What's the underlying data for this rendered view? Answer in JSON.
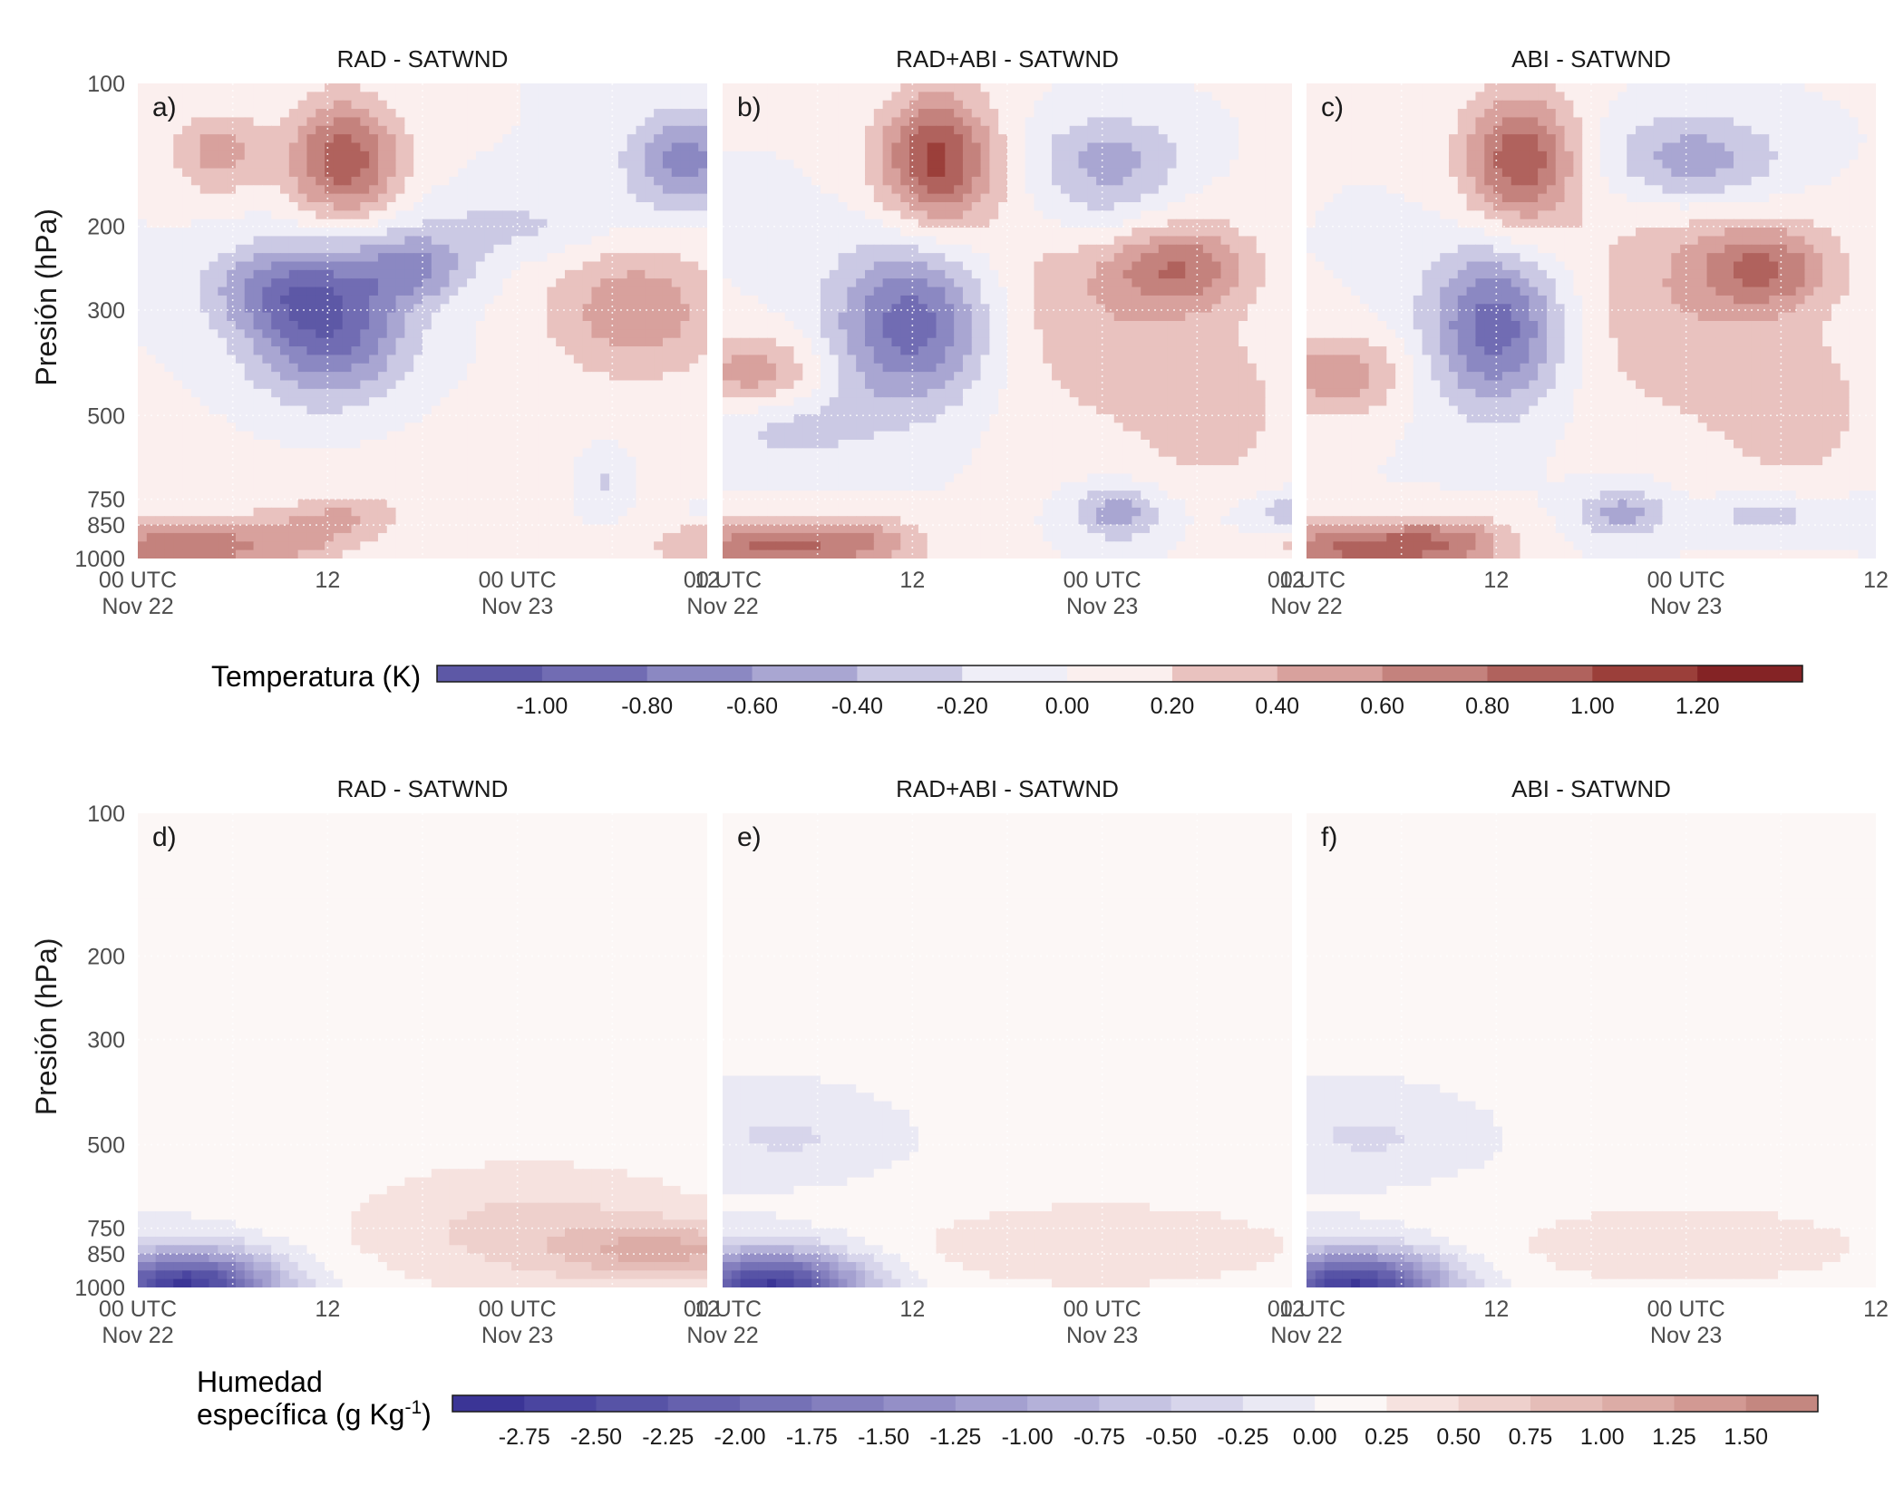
{
  "chart_data": [
    {
      "type": "heatmap",
      "panel": "a)",
      "title": "RAD - SATWND",
      "ylabel": "Presión (hPa)",
      "y_scale": "log",
      "ylim": [
        1000,
        100
      ],
      "yticks": [
        "100",
        "200",
        "300",
        "500",
        "750",
        "850",
        "1000"
      ],
      "xticks": [
        "00 UTC\nNov 22",
        "12",
        "00 UTC\nNov 23",
        "12"
      ],
      "variable": "temperatura",
      "features": [
        {
          "time_h": 13,
          "p": 145,
          "value": 0.95,
          "sx": 2.5,
          "sy": 0.09
        },
        {
          "time_h": 5,
          "p": 140,
          "value": 0.5,
          "sx": 2,
          "sy": 0.06
        },
        {
          "time_h": 34.5,
          "p": 145,
          "value": -0.7,
          "sx": 2.5,
          "sy": 0.07
        },
        {
          "time_h": 24,
          "p": 200,
          "value": -0.25,
          "sx": 5,
          "sy": 0.05
        },
        {
          "time_h": 12,
          "p": 320,
          "value": -1.0,
          "sx": 3.5,
          "sy": 0.11
        },
        {
          "time_h": 17.5,
          "p": 245,
          "value": -0.55,
          "sx": 2.5,
          "sy": 0.05
        },
        {
          "time_h": 8,
          "p": 270,
          "value": -0.4,
          "sx": 3,
          "sy": 0.06
        },
        {
          "time_h": 31.5,
          "p": 300,
          "value": 0.55,
          "sx": 4,
          "sy": 0.1
        },
        {
          "time_h": 15,
          "p": 650,
          "value": 0.06,
          "sx": 12,
          "sy": 0.15
        },
        {
          "time_h": 2.5,
          "p": 950,
          "value": 0.75,
          "sx": 4,
          "sy": 0.04
        },
        {
          "time_h": 10,
          "p": 910,
          "value": 0.35,
          "sx": 3,
          "sy": 0.04
        },
        {
          "time_h": 13.5,
          "p": 810,
          "value": 0.3,
          "sx": 2.5,
          "sy": 0.03
        },
        {
          "time_h": 38,
          "p": 930,
          "value": 0.45,
          "sx": 4,
          "sy": 0.04
        },
        {
          "time_h": 29.5,
          "p": 700,
          "value": -0.25,
          "sx": 1,
          "sy": 0.05
        },
        {
          "time_h": 39,
          "p": 810,
          "value": -0.25,
          "sx": 3,
          "sy": 0.02
        }
      ]
    },
    {
      "type": "heatmap",
      "panel": "b)",
      "title": "RAD+ABI - SATWND",
      "ylabel": "",
      "y_scale": "log",
      "ylim": [
        1000,
        100
      ],
      "yticks": [],
      "xticks": [
        "00 UTC\nNov 22",
        "12",
        "00 UTC\nNov 23",
        "12"
      ],
      "variable": "temperatura",
      "features": [
        {
          "time_h": 13.5,
          "p": 145,
          "value": 1.05,
          "sx": 2.5,
          "sy": 0.1
        },
        {
          "time_h": 24,
          "p": 190,
          "value": -0.25,
          "sx": 3,
          "sy": 0.06
        },
        {
          "time_h": 24.5,
          "p": 145,
          "value": -0.55,
          "sx": 3.5,
          "sy": 0.07
        },
        {
          "time_h": 12,
          "p": 320,
          "value": -0.95,
          "sx": 3.5,
          "sy": 0.12
        },
        {
          "time_h": 24,
          "p": 290,
          "value": 0.35,
          "sx": 6,
          "sy": 0.2
        },
        {
          "time_h": 29,
          "p": 245,
          "value": 0.6,
          "sx": 3,
          "sy": 0.06
        },
        {
          "time_h": 2,
          "p": 410,
          "value": 0.55,
          "sx": 3,
          "sy": 0.06
        },
        {
          "time_h": 25,
          "p": 800,
          "value": -0.55,
          "sx": 2,
          "sy": 0.04
        },
        {
          "time_h": 31,
          "p": 500,
          "value": 0.3,
          "sx": 3,
          "sy": 0.1
        },
        {
          "time_h": 4,
          "p": 520,
          "value": -0.3,
          "sx": 4,
          "sy": 0.06
        },
        {
          "time_h": 37,
          "p": 810,
          "value": -0.45,
          "sx": 2.5,
          "sy": 0.03
        },
        {
          "time_h": 2.5,
          "p": 950,
          "value": 0.8,
          "sx": 4,
          "sy": 0.04
        },
        {
          "time_h": 9,
          "p": 920,
          "value": 0.45,
          "sx": 3,
          "sy": 0.04
        },
        {
          "time_h": 38,
          "p": 930,
          "value": 0.35,
          "sx": 3,
          "sy": 0.03
        }
      ]
    },
    {
      "type": "heatmap",
      "panel": "c)",
      "title": "ABI - SATWND",
      "ylabel": "",
      "y_scale": "log",
      "ylim": [
        1000,
        100
      ],
      "yticks": [],
      "xticks": [
        "00 UTC\nNov 22",
        "12",
        "00 UTC\nNov 23",
        "12"
      ],
      "variable": "temperatura",
      "features": [
        {
          "time_h": 13.5,
          "p": 145,
          "value": 0.95,
          "sx": 2.5,
          "sy": 0.1
        },
        {
          "time_h": 24.5,
          "p": 145,
          "value": -0.6,
          "sx": 4,
          "sy": 0.07
        },
        {
          "time_h": 12,
          "p": 325,
          "value": -0.95,
          "sx": 3,
          "sy": 0.12
        },
        {
          "time_h": 24,
          "p": 290,
          "value": 0.35,
          "sx": 6,
          "sy": 0.2
        },
        {
          "time_h": 29,
          "p": 245,
          "value": 0.65,
          "sx": 3,
          "sy": 0.06
        },
        {
          "time_h": 2,
          "p": 410,
          "value": 0.55,
          "sx": 3,
          "sy": 0.06
        },
        {
          "time_h": 20,
          "p": 800,
          "value": -0.5,
          "sx": 2,
          "sy": 0.04
        },
        {
          "time_h": 31,
          "p": 500,
          "value": 0.3,
          "sx": 3,
          "sy": 0.1
        },
        {
          "time_h": 29,
          "p": 810,
          "value": -0.35,
          "sx": 2.5,
          "sy": 0.03
        },
        {
          "time_h": 38,
          "p": 810,
          "value": -0.3,
          "sx": 2.5,
          "sy": 0.03
        },
        {
          "time_h": 2.5,
          "p": 950,
          "value": 0.8,
          "sx": 4,
          "sy": 0.04
        },
        {
          "time_h": 9,
          "p": 930,
          "value": 0.6,
          "sx": 3,
          "sy": 0.04
        }
      ]
    },
    {
      "type": "heatmap",
      "panel": "d)",
      "title": "RAD - SATWND",
      "ylabel": "Presión (hPa)",
      "y_scale": "log",
      "ylim": [
        1000,
        100
      ],
      "yticks": [
        "100",
        "200",
        "300",
        "500",
        "750",
        "850",
        "1000"
      ],
      "xticks": [
        "00 UTC\nNov 22",
        "12",
        "00 UTC\nNov 23",
        "12"
      ],
      "variable": "humedad",
      "features": [
        {
          "time_h": 3,
          "p": 990,
          "value": -2.8,
          "sx": 4,
          "sy": 0.05
        },
        {
          "time_h": 25,
          "p": 760,
          "value": 0.55,
          "sx": 9,
          "sy": 0.1
        },
        {
          "time_h": 34,
          "p": 840,
          "value": 0.8,
          "sx": 5,
          "sy": 0.04
        },
        {
          "time_h": 24,
          "p": 300,
          "value": 0.08,
          "sx": 10,
          "sy": 0.3
        }
      ]
    },
    {
      "type": "heatmap",
      "panel": "e)",
      "title": "RAD+ABI - SATWND",
      "ylabel": "",
      "y_scale": "log",
      "ylim": [
        1000,
        100
      ],
      "yticks": [],
      "xticks": [
        "00 UTC\nNov 22",
        "12",
        "00 UTC\nNov 23",
        "12"
      ],
      "variable": "humedad",
      "features": [
        {
          "time_h": 3,
          "p": 990,
          "value": -2.8,
          "sx": 4,
          "sy": 0.05
        },
        {
          "time_h": 4,
          "p": 480,
          "value": -0.3,
          "sx": 4,
          "sy": 0.05
        },
        {
          "time_h": 24,
          "p": 820,
          "value": 0.45,
          "sx": 10,
          "sy": 0.07
        },
        {
          "time_h": 24,
          "p": 300,
          "value": 0.08,
          "sx": 10,
          "sy": 0.3
        }
      ]
    },
    {
      "type": "heatmap",
      "panel": "f)",
      "title": "ABI - SATWND",
      "ylabel": "",
      "y_scale": "log",
      "ylim": [
        1000,
        100
      ],
      "yticks": [],
      "xticks": [
        "00 UTC\nNov 22",
        "12",
        "00 UTC\nNov 23",
        "12"
      ],
      "variable": "humedad",
      "features": [
        {
          "time_h": 3,
          "p": 990,
          "value": -2.8,
          "sx": 4,
          "sy": 0.05
        },
        {
          "time_h": 4,
          "p": 480,
          "value": -0.3,
          "sx": 4,
          "sy": 0.05
        },
        {
          "time_h": 24,
          "p": 820,
          "value": 0.4,
          "sx": 10,
          "sy": 0.07
        },
        {
          "time_h": 24,
          "p": 300,
          "value": 0.08,
          "sx": 10,
          "sy": 0.3
        }
      ]
    }
  ],
  "xlim_hours": [
    0,
    36
  ],
  "pressure_ticks": [
    100,
    200,
    300,
    500,
    750,
    850,
    1000
  ],
  "xtick_hours": [
    0,
    12,
    24,
    36
  ],
  "colorbars": {
    "temperatura": {
      "title": "Temperatura (K)",
      "levels": [
        -1.2,
        -1.0,
        -0.8,
        -0.6,
        -0.4,
        -0.2,
        0.0,
        0.2,
        0.4,
        0.6,
        0.8,
        1.0,
        1.2,
        1.4
      ],
      "labels": [
        "-1.00",
        "-0.80",
        "-0.60",
        "-0.40",
        "-0.20",
        "0.00",
        "0.20",
        "0.40",
        "0.60",
        "0.80",
        "1.00",
        "1.20"
      ],
      "colors": [
        "#5d58a6",
        "#716cb3",
        "#8b88c2",
        "#a9a6d2",
        "#cbc9e4",
        "#efeef7",
        "#fbefee",
        "#e9c2bf",
        "#d8a19d",
        "#c4827d",
        "#b0625d",
        "#9b3f3a",
        "#842325"
      ]
    },
    "humedad": {
      "title_line1": "Humedad",
      "title_line2": "específica (g Kg",
      "title_sup": "-1",
      "title_close": ")",
      "levels": [
        -3.0,
        -2.75,
        -2.5,
        -2.25,
        -2.0,
        -1.75,
        -1.5,
        -1.25,
        -1.0,
        -0.75,
        -0.5,
        -0.25,
        0.0,
        0.25,
        0.5,
        0.75,
        1.0,
        1.25,
        1.5,
        1.75
      ],
      "labels": [
        "-2.75",
        "-2.50",
        "-2.25",
        "-2.00",
        "-1.75",
        "-1.50",
        "-1.25",
        "-1.00",
        "-0.75",
        "-0.50",
        "-0.25",
        "0.00",
        "0.25",
        "0.50",
        "0.75",
        "1.00",
        "1.25",
        "1.50"
      ],
      "colors": [
        "#3b3596",
        "#4a45a0",
        "#5753a6",
        "#6661ae",
        "#7571b6",
        "#847fbe",
        "#948fc7",
        "#a4a0d0",
        "#b4b1d9",
        "#c5c3e2",
        "#d7d5eb",
        "#eae9f4",
        "#fcf7f6",
        "#f6e2df",
        "#eed0cc",
        "#e5bdb8",
        "#dcaca6",
        "#d29993",
        "#c48780"
      ]
    }
  }
}
